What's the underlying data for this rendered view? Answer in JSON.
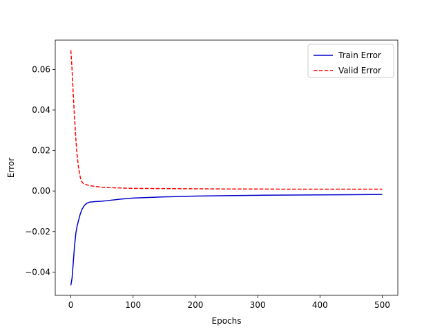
{
  "chart_data": {
    "type": "line",
    "title": "",
    "xlabel": "Epochs",
    "ylabel": "Error",
    "xlim": [
      -25,
      525
    ],
    "ylim": [
      -0.0515,
      0.0745
    ],
    "x_ticks": [
      0,
      100,
      200,
      300,
      400,
      500
    ],
    "x_tick_labels": [
      "0",
      "100",
      "200",
      "300",
      "400",
      "500"
    ],
    "y_ticks": [
      -0.04,
      -0.02,
      0.0,
      0.02,
      0.04,
      0.06
    ],
    "y_tick_labels": [
      "−0.04",
      "−0.02",
      "0.00",
      "0.02",
      "0.04",
      "0.06"
    ],
    "grid": false,
    "legend_position": "top-right",
    "series": [
      {
        "name": "Train Error",
        "color": "#0000cc",
        "style": "solid",
        "x": [
          0,
          2,
          4,
          6,
          8,
          10,
          12,
          15,
          18,
          22,
          26,
          30,
          40,
          50,
          60,
          80,
          100,
          150,
          200,
          250,
          300,
          350,
          400,
          450,
          500
        ],
        "y": [
          -0.0465,
          -0.043,
          -0.035,
          -0.027,
          -0.021,
          -0.0175,
          -0.015,
          -0.0115,
          -0.009,
          -0.007,
          -0.006,
          -0.0055,
          -0.0052,
          -0.005,
          -0.0047,
          -0.004,
          -0.0035,
          -0.0029,
          -0.0025,
          -0.0023,
          -0.0021,
          -0.002,
          -0.0019,
          -0.0018,
          -0.0017
        ]
      },
      {
        "name": "Valid Error",
        "color": "#ff0000",
        "style": "dashed",
        "x": [
          0,
          2,
          4,
          6,
          8,
          10,
          12,
          14,
          16,
          18,
          20,
          25,
          30,
          40,
          50,
          60,
          80,
          100,
          150,
          200,
          250,
          300,
          350,
          400,
          450,
          500
        ],
        "y": [
          0.0695,
          0.06,
          0.047,
          0.036,
          0.026,
          0.018,
          0.0125,
          0.0085,
          0.0058,
          0.0045,
          0.0037,
          0.0031,
          0.0027,
          0.0022,
          0.0019,
          0.0017,
          0.0015,
          0.0013,
          0.0012,
          0.0011,
          0.001,
          0.001,
          0.0009,
          0.0009,
          0.0009,
          0.0009
        ]
      }
    ]
  }
}
